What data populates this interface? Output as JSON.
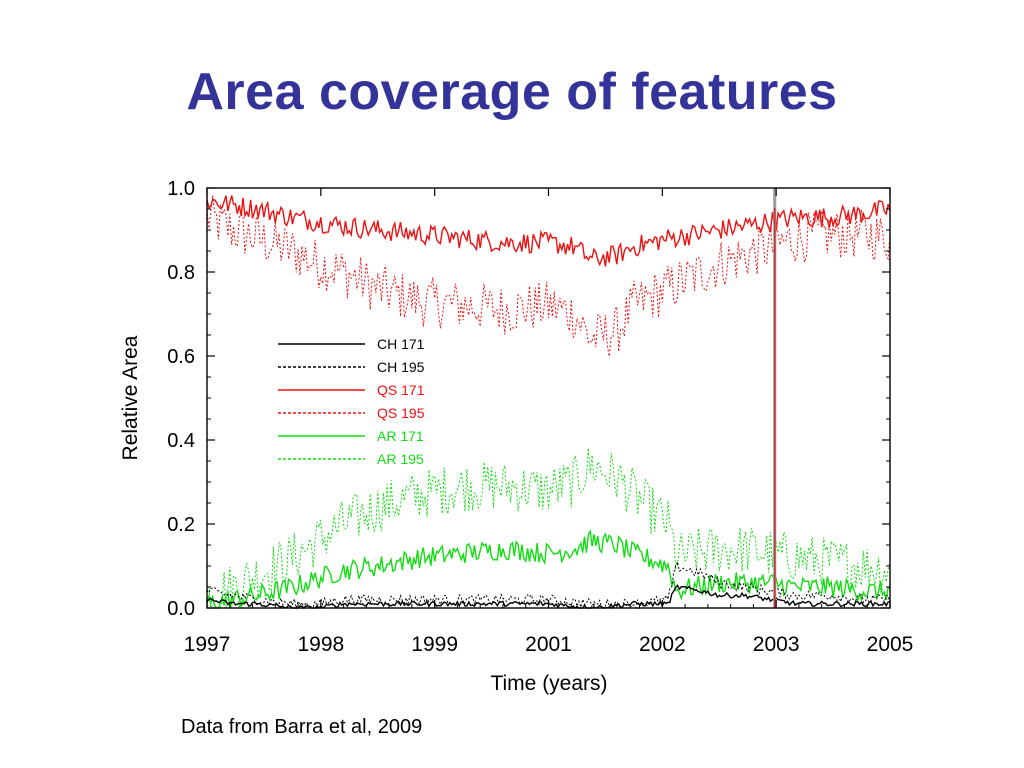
{
  "slide": {
    "title": "Area coverage of features",
    "credit": "Data from Barra et al, 2009"
  },
  "colors": {
    "title": "#33339a",
    "ch": "#000000",
    "qs": "#ee1111",
    "ar": "#11dd11",
    "marker": "#cc3333"
  },
  "chart_data": {
    "type": "line",
    "xlabel": "Time (years)",
    "ylabel": "Relative Area",
    "xlim": [
      1997,
      2005
    ],
    "ylim": [
      0,
      1.0
    ],
    "x_tick_labels": [
      "1997",
      "1998",
      "1999",
      "2001",
      "2002",
      "2003",
      "2005"
    ],
    "y_ticks": [
      0.0,
      0.2,
      0.4,
      0.6,
      0.8,
      1.0
    ],
    "y_tick_labels": [
      "0.0",
      "0.2",
      "0.4",
      "0.6",
      "0.8",
      "1.0"
    ],
    "legend_position": "center-left",
    "vertical_marker": {
      "x": 2003.65
    },
    "series": [
      {
        "name": "CH 171",
        "style": "solid",
        "color": "#000000",
        "x": [
          1997.0,
          1997.3,
          1997.6,
          1998.0,
          1998.3,
          1998.6,
          1999.0,
          1999.5,
          2000.0,
          2000.5,
          2001.0,
          2001.5,
          2002.0,
          2002.4,
          2002.5,
          2002.8,
          2003.0,
          2003.3,
          2003.6,
          2003.9,
          2004.3,
          2004.7,
          2005.0
        ],
        "y": [
          0.02,
          0.01,
          0.01,
          0.0,
          0.0,
          0.01,
          0.01,
          0.01,
          0.01,
          0.01,
          0.01,
          0.0,
          0.01,
          0.01,
          0.05,
          0.04,
          0.03,
          0.03,
          0.02,
          0.01,
          0.01,
          0.01,
          0.01
        ]
      },
      {
        "name": "CH 195",
        "style": "dashed",
        "color": "#000000",
        "x": [
          1997.0,
          1997.3,
          1997.6,
          1998.0,
          1998.3,
          1998.6,
          1999.0,
          1999.5,
          2000.0,
          2000.5,
          2001.0,
          2001.5,
          2002.0,
          2002.4,
          2002.5,
          2002.8,
          2003.0,
          2003.3,
          2003.6,
          2003.9,
          2004.3,
          2004.7,
          2005.0
        ],
        "y": [
          0.04,
          0.03,
          0.02,
          0.01,
          0.01,
          0.02,
          0.02,
          0.02,
          0.02,
          0.02,
          0.02,
          0.01,
          0.01,
          0.02,
          0.1,
          0.08,
          0.06,
          0.05,
          0.04,
          0.03,
          0.03,
          0.02,
          0.02
        ]
      },
      {
        "name": "QS 171",
        "style": "solid",
        "color": "#ee1111",
        "x": [
          1997.0,
          1997.3,
          1997.6,
          1998.0,
          1998.3,
          1998.6,
          1999.0,
          1999.5,
          2000.0,
          2000.5,
          2001.0,
          2001.3,
          2001.5,
          2001.8,
          2002.0,
          2002.4,
          2002.7,
          2003.0,
          2003.3,
          2003.6,
          2003.9,
          2004.3,
          2004.7,
          2005.0
        ],
        "y": [
          0.97,
          0.96,
          0.95,
          0.93,
          0.92,
          0.91,
          0.9,
          0.89,
          0.88,
          0.87,
          0.87,
          0.86,
          0.83,
          0.84,
          0.86,
          0.88,
          0.89,
          0.9,
          0.91,
          0.92,
          0.93,
          0.93,
          0.94,
          0.95
        ]
      },
      {
        "name": "QS 195",
        "style": "dashed",
        "color": "#ee1111",
        "x": [
          1997.0,
          1997.3,
          1997.6,
          1998.0,
          1998.3,
          1998.6,
          1999.0,
          1999.5,
          2000.0,
          2000.5,
          2001.0,
          2001.3,
          2001.5,
          2001.8,
          2002.0,
          2002.4,
          2002.7,
          2003.0,
          2003.3,
          2003.6,
          2003.9,
          2004.3,
          2004.7,
          2005.0
        ],
        "y": [
          0.93,
          0.9,
          0.88,
          0.85,
          0.82,
          0.8,
          0.76,
          0.73,
          0.72,
          0.71,
          0.72,
          0.7,
          0.64,
          0.66,
          0.72,
          0.76,
          0.79,
          0.82,
          0.84,
          0.86,
          0.88,
          0.89,
          0.89,
          0.88
        ]
      },
      {
        "name": "AR 171",
        "style": "solid",
        "color": "#11dd11",
        "x": [
          1997.0,
          1997.3,
          1997.6,
          1998.0,
          1998.3,
          1998.6,
          1999.0,
          1999.5,
          2000.0,
          2000.5,
          2001.0,
          2001.3,
          2001.5,
          2001.8,
          2002.0,
          2002.4,
          2002.5,
          2002.7,
          2003.0,
          2003.3,
          2003.6,
          2003.9,
          2004.3,
          2004.7,
          2005.0
        ],
        "y": [
          0.01,
          0.02,
          0.03,
          0.05,
          0.07,
          0.09,
          0.1,
          0.12,
          0.13,
          0.14,
          0.13,
          0.14,
          0.16,
          0.15,
          0.13,
          0.1,
          0.04,
          0.05,
          0.06,
          0.06,
          0.06,
          0.05,
          0.05,
          0.04,
          0.04
        ]
      },
      {
        "name": "AR 195",
        "style": "dashed",
        "color": "#11dd11",
        "x": [
          1997.0,
          1997.3,
          1997.6,
          1998.0,
          1998.3,
          1998.6,
          1999.0,
          1999.5,
          2000.0,
          2000.5,
          2001.0,
          2001.3,
          2001.5,
          2001.8,
          2002.0,
          2002.4,
          2002.5,
          2002.7,
          2003.0,
          2003.3,
          2003.6,
          2003.9,
          2004.3,
          2004.7,
          2005.0
        ],
        "y": [
          0.03,
          0.05,
          0.08,
          0.12,
          0.16,
          0.2,
          0.24,
          0.27,
          0.29,
          0.29,
          0.28,
          0.3,
          0.34,
          0.31,
          0.27,
          0.2,
          0.12,
          0.13,
          0.14,
          0.14,
          0.13,
          0.12,
          0.11,
          0.1,
          0.09
        ]
      }
    ]
  }
}
